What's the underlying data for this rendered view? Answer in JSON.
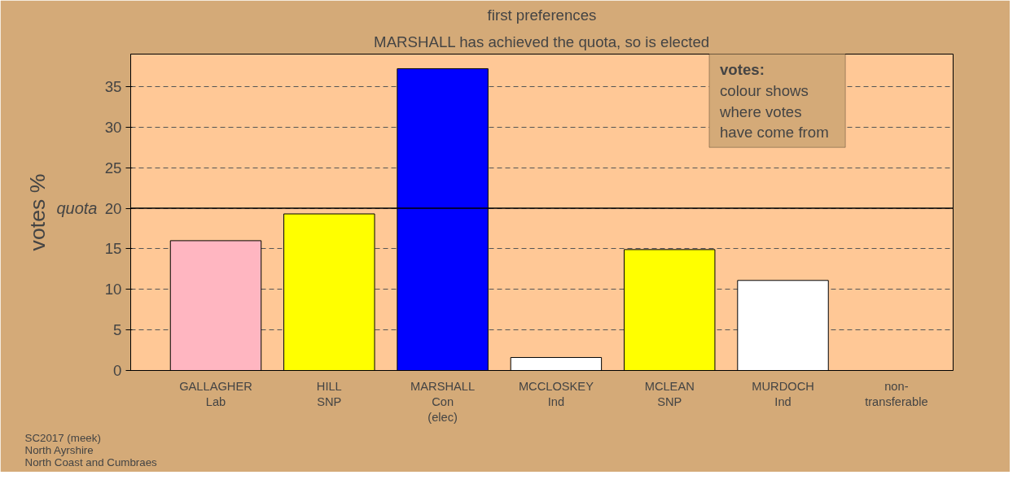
{
  "chart_data": {
    "type": "bar",
    "title": "first preferences",
    "subtitle": "MARSHALL has achieved the quota, so is elected",
    "ylabel": "votes %",
    "categories": [
      "GALLAGHER\nLab",
      "HILL\nSNP",
      "MARSHALL\nCon\n(elec)",
      "MCCLOSKEY\nInd",
      "MCLEAN\nSNP",
      "MURDOCH\nInd",
      "non-\ntransferable"
    ],
    "values": [
      16.0,
      19.3,
      37.2,
      1.6,
      14.9,
      11.1,
      null
    ],
    "colors": [
      "#ffb6c1",
      "#ffff00",
      "#0000ff",
      "#ffffff",
      "#ffff00",
      "#ffffff",
      "#ffffff"
    ],
    "ylim": [
      0,
      39
    ],
    "yticks": [
      0,
      5,
      10,
      15,
      20,
      25,
      30,
      35
    ],
    "grid": "y",
    "ref_lines": [
      {
        "axis": "y",
        "value": 20,
        "label": "quota",
        "color": "#000000"
      }
    ],
    "annotations": [
      "votes:",
      "colour shows\nwhere votes\nhave come from",
      "SC2017 (meek)\nNorth Ayrshire\nNorth Coast and Cumbraes"
    ]
  }
}
